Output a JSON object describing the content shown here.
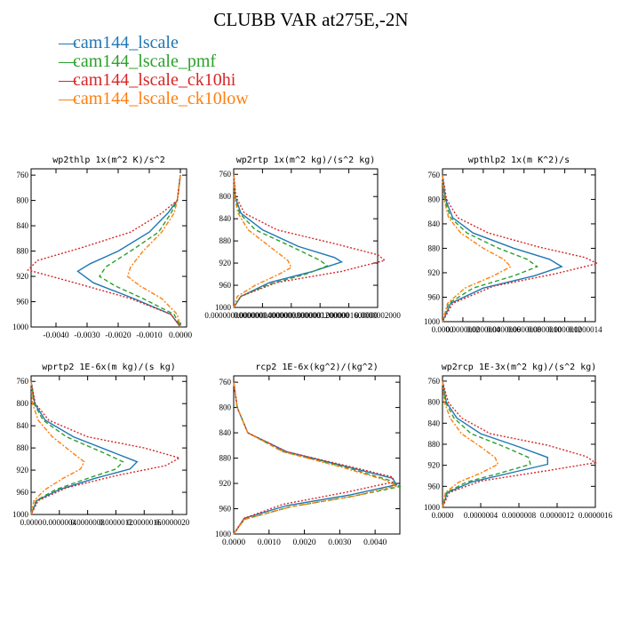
{
  "title": "CLUBB VAR at275E,-2N",
  "legend": [
    {
      "label": "cam144_lscale",
      "color": "#1f77b4"
    },
    {
      "label": "cam144_lscale_pmf",
      "color": "#2ca02c"
    },
    {
      "label": "cam144_lscale_ck10hi",
      "color": "#d62728"
    },
    {
      "label": "cam144_lscale_ck10low",
      "color": "#ff7f0e"
    }
  ],
  "chart_data": [
    {
      "type": "line",
      "title": "wp2thlp  1x(m^2 K)/s^2",
      "xlim": [
        -0.0048,
        0.0002
      ],
      "ylim": [
        1000,
        750
      ],
      "xticks": [
        "-0.0040",
        "-0.0030",
        "-0.0020",
        "-0.0010",
        "0.0000"
      ],
      "xtick_values": [
        -0.004,
        -0.003,
        -0.002,
        -0.001,
        0.0
      ],
      "yticks": [
        760,
        800,
        840,
        880,
        920,
        960,
        1000
      ],
      "series": [
        {
          "name": "cam144_lscale",
          "x": [
            0.0,
            -0.0001,
            -0.0004,
            -0.001,
            -0.002,
            -0.0029,
            -0.0033,
            -0.0028,
            -0.0015,
            -0.0003,
            0.0
          ],
          "y": [
            760,
            800,
            820,
            850,
            880,
            900,
            912,
            930,
            955,
            980,
            1000
          ]
        },
        {
          "name": "cam144_lscale_pmf",
          "x": [
            0.0,
            -0.0001,
            -0.0003,
            -0.0007,
            -0.0016,
            -0.0024,
            -0.0026,
            -0.0021,
            -0.0012,
            -0.0002,
            0.0
          ],
          "y": [
            760,
            800,
            820,
            850,
            880,
            905,
            920,
            935,
            955,
            980,
            1000
          ]
        },
        {
          "name": "cam144_lscale_ck10hi",
          "x": [
            0.0,
            -0.0001,
            -0.0006,
            -0.0016,
            -0.0032,
            -0.0046,
            -0.0049,
            -0.0034,
            -0.0016,
            -0.0003,
            0.0
          ],
          "y": [
            760,
            800,
            820,
            850,
            875,
            895,
            910,
            930,
            955,
            980,
            1000
          ]
        },
        {
          "name": "cam144_lscale_ck10low",
          "x": [
            0.0,
            -0.0001,
            -0.0002,
            -0.0006,
            -0.0012,
            -0.0016,
            -0.0017,
            -0.0013,
            -0.0006,
            -0.0001,
            0.0
          ],
          "y": [
            760,
            800,
            820,
            850,
            880,
            905,
            920,
            935,
            955,
            980,
            1000
          ]
        }
      ]
    },
    {
      "type": "line",
      "title": "wp2rtp  1x(m^2 kg)/(s^2 kg)",
      "xlim": [
        0.0,
        2e-07
      ],
      "ylim": [
        1000,
        750
      ],
      "xticks": [
        "0.0000000000000",
        "0.0000000400000",
        "0.0000000800000",
        "0.0000001200000",
        "0.0000001600000",
        "0.0000002000"
      ],
      "xtick_values": [
        0.0,
        4e-08,
        8e-08,
        1.2e-07,
        1.6e-07,
        2e-07
      ],
      "yticks": [
        760,
        800,
        840,
        880,
        920,
        960,
        1000
      ],
      "series": [
        {
          "name": "cam144_lscale",
          "x": [
            0.0,
            2e-09,
            1e-08,
            4e-08,
            9e-08,
            1.4e-07,
            1.5e-07,
            1.1e-07,
            5e-08,
            1e-08,
            0.0
          ],
          "y": [
            760,
            800,
            830,
            860,
            890,
            910,
            918,
            935,
            955,
            980,
            1000
          ]
        },
        {
          "name": "cam144_lscale_pmf",
          "x": [
            0.0,
            2e-09,
            8e-09,
            3e-08,
            8e-08,
            1.2e-07,
            1.3e-07,
            1e-07,
            5e-08,
            1e-08,
            0.0
          ],
          "y": [
            760,
            800,
            830,
            860,
            890,
            915,
            925,
            940,
            958,
            980,
            1000
          ]
        },
        {
          "name": "cam144_lscale_ck10hi",
          "x": [
            0.0,
            3e-09,
            1.5e-08,
            6e-08,
            1.4e-07,
            2e-07,
            2.1e-07,
            1.5e-07,
            6e-08,
            1e-08,
            0.0
          ],
          "y": [
            760,
            800,
            830,
            860,
            885,
            905,
            915,
            935,
            955,
            980,
            1000
          ]
        },
        {
          "name": "cam144_lscale_ck10low",
          "x": [
            0.0,
            1e-09,
            6e-09,
            2e-08,
            5e-08,
            7.5e-08,
            8e-08,
            6e-08,
            3e-08,
            5e-09,
            0.0
          ],
          "y": [
            760,
            800,
            830,
            860,
            890,
            915,
            928,
            942,
            960,
            980,
            1000
          ]
        }
      ]
    },
    {
      "type": "line",
      "title": "wpthlp2  1x(m K^2)/s",
      "xlim": [
        0.0,
        1.5e-06
      ],
      "ylim": [
        1000,
        750
      ],
      "xticks": [
        "0.0000",
        "0.0000002",
        "0.0000004",
        "0.0000006",
        "0.0000008",
        "0.0000010",
        "0.0000012",
        "0.0000014"
      ],
      "xtick_values": [
        0.0,
        2e-07,
        4e-07,
        6e-07,
        8e-07,
        1e-06,
        1.2e-06,
        1.4e-06
      ],
      "yticks": [
        760,
        800,
        840,
        880,
        920,
        960,
        1000
      ],
      "series": [
        {
          "name": "cam144_lscale",
          "x": [
            0.0,
            3e-08,
            1e-07,
            3e-07,
            7e-07,
            1.05e-06,
            1.17e-06,
            9e-07,
            4e-07,
            8e-08,
            0.0
          ],
          "y": [
            760,
            800,
            830,
            855,
            880,
            898,
            910,
            925,
            945,
            970,
            1000
          ]
        },
        {
          "name": "cam144_lscale_pmf",
          "x": [
            0.0,
            2e-08,
            8e-08,
            2.4e-07,
            5.5e-07,
            8.3e-07,
            9.3e-07,
            7e-07,
            3e-07,
            6e-08,
            0.0
          ],
          "y": [
            760,
            800,
            830,
            855,
            880,
            898,
            910,
            925,
            945,
            970,
            1000
          ]
        },
        {
          "name": "cam144_lscale_ck10hi",
          "x": [
            0.0,
            4e-08,
            1.5e-07,
            4.5e-07,
            9.5e-07,
            1.4e-06,
            1.52e-06,
            1.1e-06,
            5e-07,
            1e-07,
            0.0
          ],
          "y": [
            760,
            800,
            830,
            855,
            878,
            895,
            905,
            922,
            942,
            970,
            1000
          ]
        },
        {
          "name": "cam144_lscale_ck10low",
          "x": [
            0.0,
            1.5e-08,
            6e-08,
            1.8e-07,
            4e-07,
            6e-07,
            6.7e-07,
            5e-07,
            2.2e-07,
            5e-08,
            0.0
          ],
          "y": [
            760,
            800,
            830,
            855,
            880,
            898,
            910,
            925,
            945,
            970,
            1000
          ]
        }
      ]
    },
    {
      "type": "line",
      "title": "wprtp2  1E-6x(m kg)/(s kg)",
      "xlim": [
        0.0,
        2.2e-06
      ],
      "ylim": [
        1000,
        750
      ],
      "xticks": [
        "0.0000",
        "0.0000004",
        "0.0000008",
        "0.0000012",
        "0.0000016",
        "0.0000020"
      ],
      "xtick_values": [
        0.0,
        4e-07,
        8e-07,
        1.2e-06,
        1.6e-06,
        2e-06
      ],
      "yticks": [
        760,
        800,
        840,
        880,
        920,
        960,
        1000
      ],
      "series": [
        {
          "name": "cam144_lscale",
          "x": [
            0.0,
            5e-08,
            2e-07,
            6e-07,
            1.2e-06,
            1.5e-06,
            1.4e-06,
            9e-07,
            4e-07,
            8e-08,
            0.0
          ],
          "y": [
            760,
            800,
            830,
            860,
            890,
            905,
            918,
            935,
            955,
            975,
            1000
          ]
        },
        {
          "name": "cam144_lscale_pmf",
          "x": [
            0.0,
            4e-08,
            1.7e-07,
            5e-07,
            1.05e-06,
            1.3e-06,
            1.2e-06,
            8e-07,
            3.5e-07,
            7e-08,
            0.0
          ],
          "y": [
            760,
            800,
            830,
            860,
            890,
            905,
            918,
            935,
            955,
            975,
            1000
          ]
        },
        {
          "name": "cam144_lscale_ck10hi",
          "x": [
            0.0,
            6e-08,
            2.5e-07,
            8e-07,
            1.6e-06,
            2.1e-06,
            1.9e-06,
            1.2e-06,
            5e-07,
            1e-07,
            0.0
          ],
          "y": [
            760,
            800,
            830,
            860,
            880,
            898,
            912,
            930,
            952,
            975,
            1000
          ]
        },
        {
          "name": "cam144_lscale_ck10low",
          "x": [
            0.0,
            2e-08,
            1e-07,
            3e-07,
            6e-07,
            7.5e-07,
            7e-07,
            4.5e-07,
            2e-07,
            4e-08,
            0.0
          ],
          "y": [
            760,
            800,
            830,
            860,
            890,
            905,
            918,
            935,
            955,
            975,
            1000
          ]
        }
      ]
    },
    {
      "type": "line",
      "title": "rcp2  1E-6x(kg^2)/(kg^2)",
      "xlim": [
        0.0,
        0.0047
      ],
      "ylim": [
        1000,
        750
      ],
      "xticks": [
        "0.0000",
        "0.0010",
        "0.0020",
        "0.0030",
        "0.0040"
      ],
      "xtick_values": [
        0.0,
        0.001,
        0.002,
        0.003,
        0.004
      ],
      "yticks": [
        760,
        800,
        840,
        880,
        920,
        960,
        1000
      ],
      "series": [
        {
          "name": "cam144_lscale",
          "x": [
            0.0,
            0.0001,
            0.0004,
            0.0015,
            0.0033,
            0.0045,
            0.0046,
            0.0033,
            0.0015,
            0.0003,
            0.0
          ],
          "y": [
            760,
            800,
            840,
            870,
            895,
            912,
            922,
            938,
            955,
            975,
            1000
          ]
        },
        {
          "name": "cam144_lscale_pmf",
          "x": [
            0.0,
            0.0001,
            0.0004,
            0.0014,
            0.0032,
            0.0044,
            0.0047,
            0.0034,
            0.0016,
            0.0003,
            0.0
          ],
          "y": [
            760,
            800,
            840,
            870,
            895,
            915,
            925,
            940,
            957,
            977,
            1000
          ]
        },
        {
          "name": "cam144_lscale_ck10hi",
          "x": [
            0.0,
            0.0001,
            0.0004,
            0.0015,
            0.0034,
            0.0045,
            0.0045,
            0.0031,
            0.0014,
            0.0003,
            0.0
          ],
          "y": [
            760,
            800,
            840,
            870,
            895,
            910,
            918,
            935,
            953,
            975,
            1000
          ]
        },
        {
          "name": "cam144_lscale_ck10low",
          "x": [
            0.0,
            0.0001,
            0.0004,
            0.0014,
            0.0031,
            0.0043,
            0.0046,
            0.0034,
            0.0016,
            0.0003,
            0.0
          ],
          "y": [
            760,
            800,
            840,
            870,
            895,
            915,
            924,
            940,
            957,
            977,
            1000
          ]
        }
      ]
    },
    {
      "type": "line",
      "title": "wp2rcp  1E-3x(m^2 kg)/(s^2 kg)",
      "xlim": [
        0.0,
        1.6e-06
      ],
      "ylim": [
        1000,
        750
      ],
      "xticks": [
        "0.0000",
        "0.0000004",
        "0.0000008",
        "0.0000012",
        "0.0000016"
      ],
      "xtick_values": [
        0.0,
        4e-07,
        8e-07,
        1.2e-06,
        1.6e-06
      ],
      "yticks": [
        760,
        800,
        840,
        880,
        920,
        960,
        1000
      ],
      "series": [
        {
          "name": "cam144_lscale",
          "x": [
            0.0,
            4e-08,
            1.5e-07,
            4e-07,
            8e-07,
            1.1e-06,
            1.1e-06,
            7e-07,
            3e-07,
            5e-08,
            0.0
          ],
          "y": [
            760,
            800,
            830,
            860,
            885,
            905,
            918,
            935,
            952,
            972,
            1000
          ]
        },
        {
          "name": "cam144_lscale_pmf",
          "x": [
            0.0,
            3e-08,
            1.2e-07,
            3e-07,
            6.5e-07,
            9e-07,
            9.2e-07,
            6e-07,
            2.5e-07,
            4e-08,
            0.0
          ],
          "y": [
            760,
            800,
            830,
            860,
            885,
            905,
            918,
            935,
            952,
            972,
            1000
          ]
        },
        {
          "name": "cam144_lscale_ck10hi",
          "x": [
            0.0,
            6e-08,
            2e-07,
            5e-07,
            1.1e-06,
            1.5e-06,
            1.6e-06,
            1.1e-06,
            4e-07,
            7e-08,
            0.0
          ],
          "y": [
            760,
            800,
            830,
            860,
            882,
            903,
            915,
            930,
            950,
            972,
            1000
          ]
        },
        {
          "name": "cam144_lscale_ck10low",
          "x": [
            0.0,
            2e-08,
            8e-08,
            2e-07,
            4e-07,
            5.5e-07,
            5.8e-07,
            4e-07,
            1.7e-07,
            3e-08,
            0.0
          ],
          "y": [
            760,
            800,
            830,
            860,
            885,
            905,
            918,
            935,
            952,
            972,
            1000
          ]
        }
      ]
    }
  ]
}
